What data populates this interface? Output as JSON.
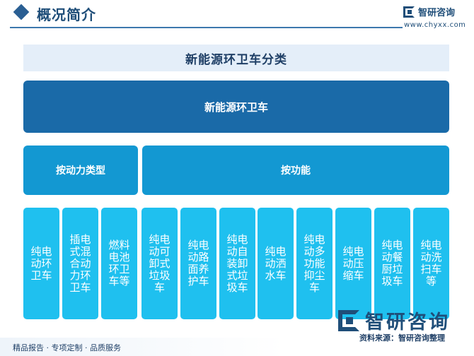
{
  "header": {
    "title": "概况简介",
    "brand": "智研咨询",
    "url": "www.chyxx.com"
  },
  "diagram": {
    "title": "新能源环卫车分类",
    "root": "新能源环卫车",
    "categories": {
      "power": "按动力类型",
      "function": "按功能"
    },
    "leaves": [
      "纯电动环卫车",
      "插电式混合动力环卫车",
      "燃料电池环卫车等",
      "纯电动可卸式垃圾车",
      "纯电动路面养护车",
      "纯电动自装卸式垃圾车",
      "纯电动洒水车",
      "纯电动多功能抑尘车",
      "纯电动压缩车",
      "纯电动餐厨垃圾车",
      "纯电动洗扫车等"
    ]
  },
  "footer": {
    "slogan": "精品报告 · 专项定制 · 品质服务",
    "watermark": "智研咨询",
    "source": "资料来源：智研咨询整理"
  },
  "colors": {
    "root": "#1a6aa8",
    "category": "#1398d2",
    "leaf": "#1fc0ef",
    "title_bg": "#e4eef9"
  }
}
